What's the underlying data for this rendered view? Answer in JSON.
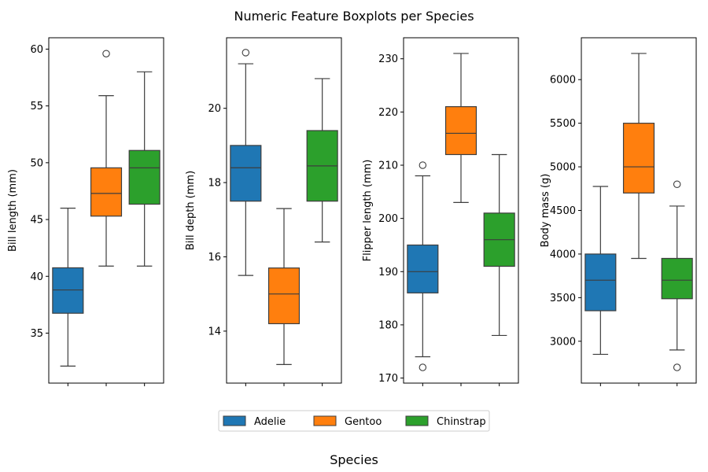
{
  "figure": {
    "title": "Numeric Feature Boxplots per Species",
    "xlabel": "Species"
  },
  "legend": {
    "position": "bottom-center",
    "items": [
      {
        "label": "Adelie",
        "color": "#1f77b4"
      },
      {
        "label": "Gentoo",
        "color": "#ff7f0e"
      },
      {
        "label": "Chinstrap",
        "color": "#2ca02c"
      }
    ]
  },
  "chart_data": [
    {
      "type": "box",
      "ylabel": "Bill length (mm)",
      "ylim": [
        30.6,
        61.0
      ],
      "yticks": [
        35,
        40,
        45,
        50,
        55,
        60
      ],
      "categories": [
        "Adelie",
        "Gentoo",
        "Chinstrap"
      ],
      "series": [
        {
          "name": "Adelie",
          "whisker_low": 32.1,
          "q1": 36.75,
          "median": 38.8,
          "q3": 40.75,
          "whisker_high": 46.0,
          "outliers": []
        },
        {
          "name": "Gentoo",
          "whisker_low": 40.9,
          "q1": 45.3,
          "median": 47.3,
          "q3": 49.55,
          "whisker_high": 55.9,
          "outliers": [
            59.6
          ]
        },
        {
          "name": "Chinstrap",
          "whisker_low": 40.9,
          "q1": 46.35,
          "median": 49.55,
          "q3": 51.08,
          "whisker_high": 58.0,
          "outliers": []
        }
      ]
    },
    {
      "type": "box",
      "ylabel": "Bill depth (mm)",
      "ylim": [
        12.6,
        21.9
      ],
      "yticks": [
        14,
        16,
        18,
        20
      ],
      "categories": [
        "Adelie",
        "Gentoo",
        "Chinstrap"
      ],
      "series": [
        {
          "name": "Adelie",
          "whisker_low": 15.5,
          "q1": 17.5,
          "median": 18.4,
          "q3": 19.0,
          "whisker_high": 21.2,
          "outliers": [
            21.5
          ]
        },
        {
          "name": "Gentoo",
          "whisker_low": 13.1,
          "q1": 14.2,
          "median": 15.0,
          "q3": 15.7,
          "whisker_high": 17.3,
          "outliers": []
        },
        {
          "name": "Chinstrap",
          "whisker_low": 16.4,
          "q1": 17.5,
          "median": 18.45,
          "q3": 19.4,
          "whisker_high": 20.8,
          "outliers": []
        }
      ]
    },
    {
      "type": "box",
      "ylabel": "Flipper length (mm)",
      "ylim": [
        169.05,
        233.95
      ],
      "yticks": [
        170,
        180,
        190,
        200,
        210,
        220,
        230
      ],
      "categories": [
        "Adelie",
        "Gentoo",
        "Chinstrap"
      ],
      "series": [
        {
          "name": "Adelie",
          "whisker_low": 174,
          "q1": 186,
          "median": 190,
          "q3": 195,
          "whisker_high": 208,
          "outliers": [
            172,
            210
          ]
        },
        {
          "name": "Gentoo",
          "whisker_low": 203,
          "q1": 212,
          "median": 216,
          "q3": 221,
          "whisker_high": 231,
          "outliers": []
        },
        {
          "name": "Chinstrap",
          "whisker_low": 178,
          "q1": 191,
          "median": 196,
          "q3": 201,
          "whisker_high": 212,
          "outliers": []
        }
      ]
    },
    {
      "type": "box",
      "ylabel": "Body mass (g)",
      "ylim": [
        2520,
        6480
      ],
      "yticks": [
        3000,
        3500,
        4000,
        4500,
        5000,
        5500,
        6000
      ],
      "categories": [
        "Adelie",
        "Gentoo",
        "Chinstrap"
      ],
      "series": [
        {
          "name": "Adelie",
          "whisker_low": 2850,
          "q1": 3350,
          "median": 3700,
          "q3": 4000,
          "whisker_high": 4775,
          "outliers": []
        },
        {
          "name": "Gentoo",
          "whisker_low": 3950,
          "q1": 4700,
          "median": 5000,
          "q3": 5500,
          "whisker_high": 6300,
          "outliers": []
        },
        {
          "name": "Chinstrap",
          "whisker_low": 2900,
          "q1": 3487.5,
          "median": 3700,
          "q3": 3950,
          "whisker_high": 4550,
          "outliers": [
            2700,
            4800
          ]
        }
      ]
    }
  ]
}
